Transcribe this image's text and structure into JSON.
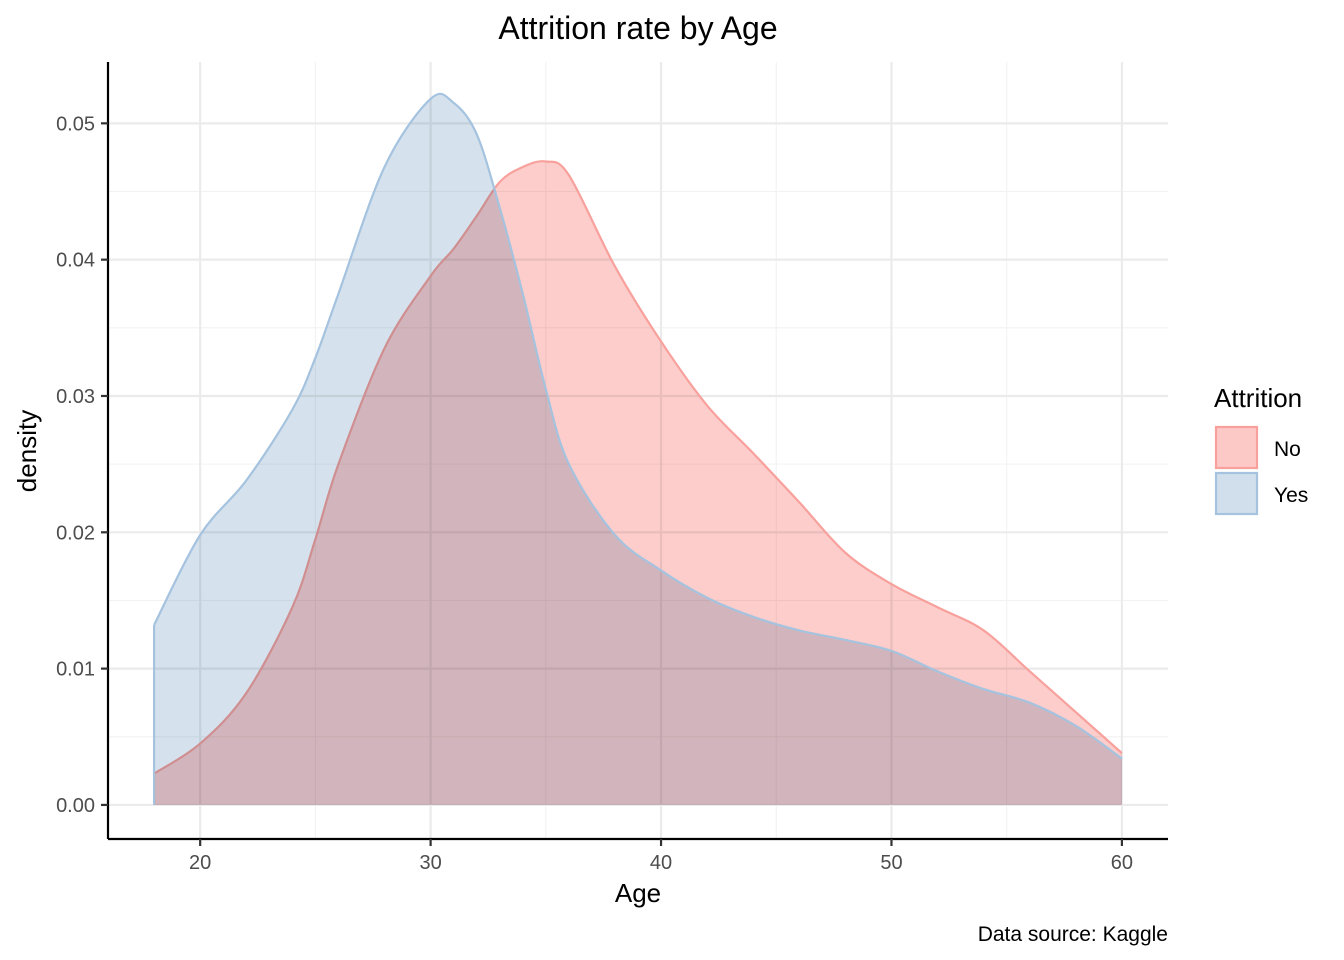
{
  "chart_data": {
    "type": "area",
    "title": "Attrition rate by Age",
    "xlabel": "Age",
    "ylabel": "density",
    "caption": "Data source: Kaggle",
    "xlim": [
      16,
      62
    ],
    "ylim": [
      -0.0025,
      0.0545
    ],
    "x_ticks": [
      20,
      30,
      40,
      50,
      60
    ],
    "y_ticks": [
      0.0,
      0.01,
      0.02,
      0.03,
      0.04,
      0.05
    ],
    "x_tick_labels": [
      "20",
      "30",
      "40",
      "50",
      "60"
    ],
    "y_tick_labels": [
      "0.00",
      "0.01",
      "0.02",
      "0.03",
      "0.04",
      "0.05"
    ],
    "grid": true,
    "legend": {
      "title": "Attrition",
      "position": "right",
      "entries": [
        "No",
        "Yes"
      ]
    },
    "x": [
      18,
      20,
      22,
      24,
      25,
      26,
      28,
      30,
      31,
      32,
      33,
      34,
      35,
      36,
      38,
      40,
      42,
      44,
      46,
      48,
      50,
      52,
      54,
      56,
      58,
      60
    ],
    "series": [
      {
        "name": "No",
        "fill": "#fcc9c7",
        "stroke": "#f8a19c",
        "values": [
          0.0023,
          0.0045,
          0.0082,
          0.0145,
          0.0195,
          0.025,
          0.0335,
          0.0388,
          0.0408,
          0.0432,
          0.0457,
          0.0468,
          0.0472,
          0.0462,
          0.0395,
          0.034,
          0.0293,
          0.0258,
          0.0222,
          0.0185,
          0.0162,
          0.0145,
          0.0128,
          0.0098,
          0.0068,
          0.0038
        ]
      },
      {
        "name": "Yes",
        "fill": "#d1dfec",
        "stroke": "#a5c3df",
        "values": [
          0.0132,
          0.0198,
          0.0238,
          0.029,
          0.0328,
          0.0375,
          0.0468,
          0.0518,
          0.0515,
          0.0492,
          0.0438,
          0.0375,
          0.0305,
          0.025,
          0.0198,
          0.0172,
          0.0152,
          0.0138,
          0.0128,
          0.0121,
          0.0113,
          0.0098,
          0.0085,
          0.0075,
          0.0058,
          0.0034
        ]
      }
    ]
  }
}
